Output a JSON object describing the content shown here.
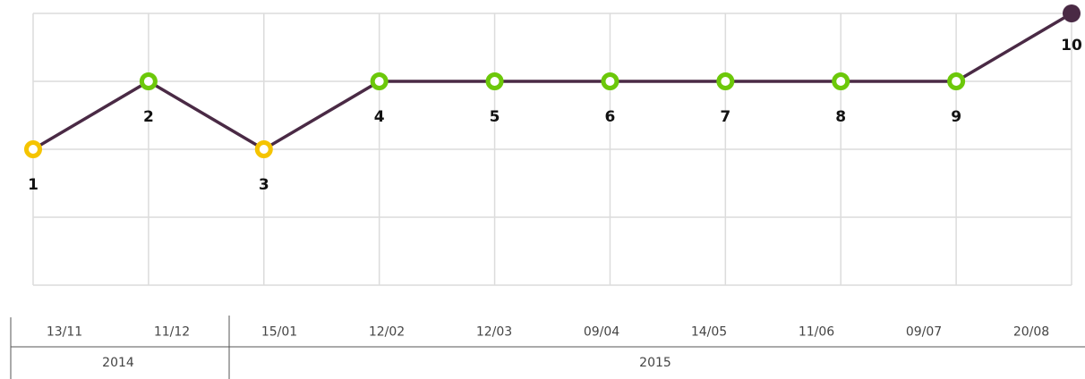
{
  "chart_data": {
    "type": "line",
    "categories": [
      "13/11",
      "11/12",
      "15/01",
      "12/02",
      "12/03",
      "09/04",
      "14/05",
      "11/06",
      "09/07",
      "20/08"
    ],
    "series": [
      {
        "color": "#4a2a45",
        "values": [
          2,
          3,
          2,
          3,
          3,
          3,
          3,
          3,
          3,
          4
        ],
        "point_labels": [
          "1",
          "2",
          "3",
          "4",
          "5",
          "6",
          "7",
          "8",
          "9",
          "10"
        ],
        "point_colors": [
          "#f5c400",
          "#6cc80a",
          "#f5c400",
          "#6cc80a",
          "#6cc80a",
          "#6cc80a",
          "#6cc80a",
          "#6cc80a",
          "#6cc80a",
          "#4a2a45"
        ]
      }
    ],
    "ylim": [
      0,
      4
    ],
    "yticks": [
      0,
      1,
      2,
      3,
      4
    ],
    "grid": true,
    "year_groups": [
      {
        "label": "2014",
        "count": 2
      },
      {
        "label": "2015",
        "count": 8
      }
    ]
  }
}
